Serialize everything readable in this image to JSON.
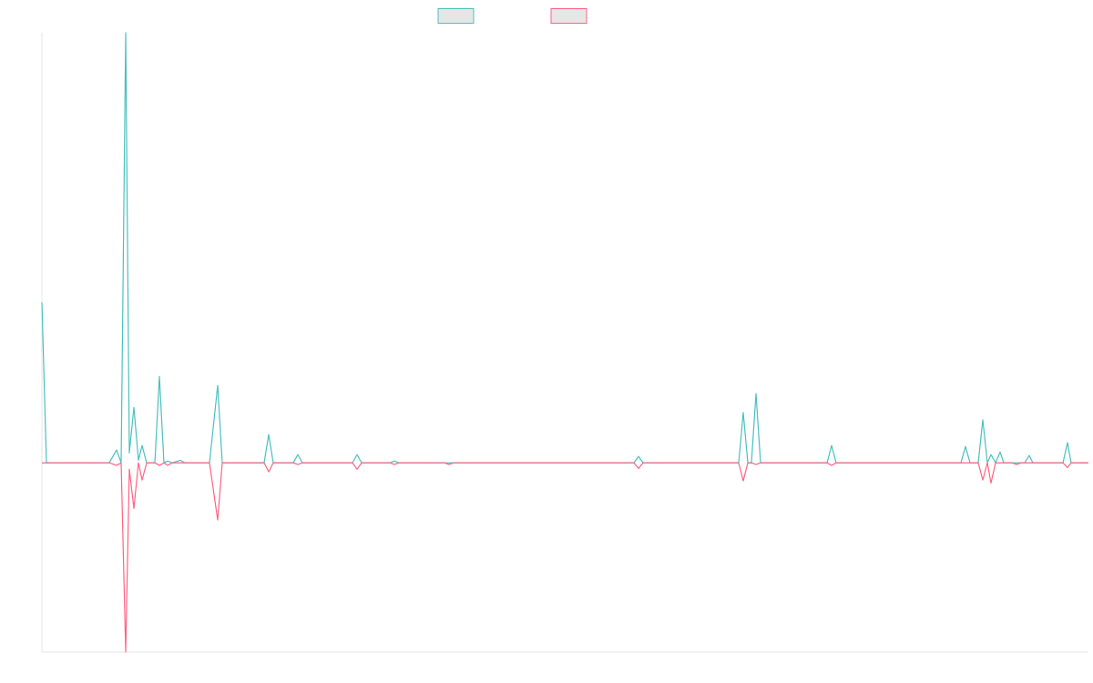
{
  "chart_data": {
    "type": "line",
    "xlim": [
      0,
      1149
    ],
    "ylim": [
      -44,
      100
    ],
    "grid": false,
    "series": [
      {
        "color": "#4bc0c0",
        "x": [
          0,
          5,
          74,
          82,
          87,
          92,
          96,
          101,
          106,
          110,
          115,
          124,
          129,
          134,
          138,
          143,
          152,
          157,
          184,
          193,
          198,
          244,
          249,
          254,
          276,
          281,
          286,
          341,
          346,
          351,
          382,
          387,
          392,
          650,
          655,
          660,
          765,
          770,
          775,
          779,
          784,
          789,
          862,
          867,
          872,
          1009,
          1014,
          1019,
          1028,
          1033,
          1038,
          1042,
          1047,
          1052,
          1056,
          1065,
          1079,
          1084,
          1088,
          1121,
          1126,
          1130,
          1149
        ],
        "values": [
          37.3,
          0,
          0,
          3,
          0,
          100,
          2.3,
          12.9,
          0.6,
          4,
          0,
          0,
          20.1,
          0,
          0.4,
          0,
          0.6,
          0,
          0,
          18,
          0,
          0,
          6.6,
          0,
          0,
          1.9,
          0,
          0,
          1.9,
          0,
          0,
          0.4,
          0,
          0,
          1.5,
          0,
          0,
          11.7,
          0,
          0,
          16.1,
          0,
          0,
          4,
          0,
          0,
          3.8,
          0,
          0,
          10,
          0,
          1.9,
          0,
          2.5,
          0,
          0,
          0,
          1.7,
          0,
          0,
          4.7,
          0,
          0
        ]
      },
      {
        "color": "#ff6384",
        "x": [
          0,
          74,
          82,
          87,
          92,
          96,
          101,
          106,
          110,
          115,
          124,
          129,
          134,
          138,
          143,
          184,
          193,
          198,
          244,
          249,
          254,
          276,
          281,
          286,
          341,
          346,
          351,
          382,
          387,
          392,
          442,
          447,
          452,
          650,
          655,
          660,
          765,
          770,
          775,
          779,
          784,
          789,
          862,
          867,
          872,
          1028,
          1033,
          1038,
          1042,
          1047,
          1065,
          1070,
          1075,
          1121,
          1126,
          1130,
          1149
        ],
        "values": [
          0,
          0,
          -0.6,
          0,
          -44,
          -1.5,
          -10.6,
          0,
          -4,
          0,
          0,
          -0.6,
          0,
          -0.6,
          0,
          0,
          -13.3,
          0,
          0,
          -2.1,
          0,
          0,
          -0.4,
          0,
          0,
          -1.5,
          0,
          0,
          -0.4,
          0,
          0,
          -0.4,
          0,
          0,
          -1.3,
          0,
          0,
          -4.2,
          0,
          0,
          -0.4,
          0,
          0,
          -0.6,
          0,
          0,
          -4,
          0,
          -4.7,
          0,
          0,
          -0.4,
          0,
          0,
          -1.1,
          0,
          0
        ]
      }
    ]
  }
}
